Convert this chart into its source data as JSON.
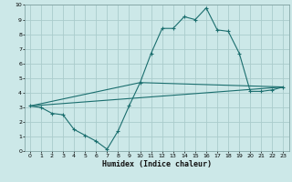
{
  "title": "",
  "xlabel": "Humidex (Indice chaleur)",
  "bg_color": "#cce8e8",
  "grid_color": "#aacccc",
  "line_color": "#1a6e6e",
  "xlim": [
    -0.5,
    23.5
  ],
  "ylim": [
    0,
    10
  ],
  "xticks": [
    0,
    1,
    2,
    3,
    4,
    5,
    6,
    7,
    8,
    9,
    10,
    11,
    12,
    13,
    14,
    15,
    16,
    17,
    18,
    19,
    20,
    21,
    22,
    23
  ],
  "yticks": [
    0,
    1,
    2,
    3,
    4,
    5,
    6,
    7,
    8,
    9,
    10
  ],
  "line1_x": [
    0,
    1,
    2,
    3,
    4,
    5,
    6,
    7,
    8,
    9,
    10,
    11,
    12,
    13,
    14,
    15,
    16,
    17,
    18,
    19,
    20,
    21,
    22,
    23
  ],
  "line1_y": [
    3.1,
    3.0,
    2.6,
    2.5,
    1.5,
    1.1,
    0.7,
    0.15,
    1.4,
    3.1,
    4.7,
    6.7,
    8.4,
    8.4,
    9.2,
    9.0,
    9.8,
    8.3,
    8.2,
    6.7,
    4.1,
    4.1,
    4.2,
    4.4
  ],
  "line2_x": [
    0,
    23
  ],
  "line2_y": [
    3.1,
    4.4
  ],
  "line3_x": [
    0,
    10,
    23
  ],
  "line3_y": [
    3.1,
    4.7,
    4.4
  ],
  "xlabel_fontsize": 6,
  "tick_fontsize": 4.5
}
